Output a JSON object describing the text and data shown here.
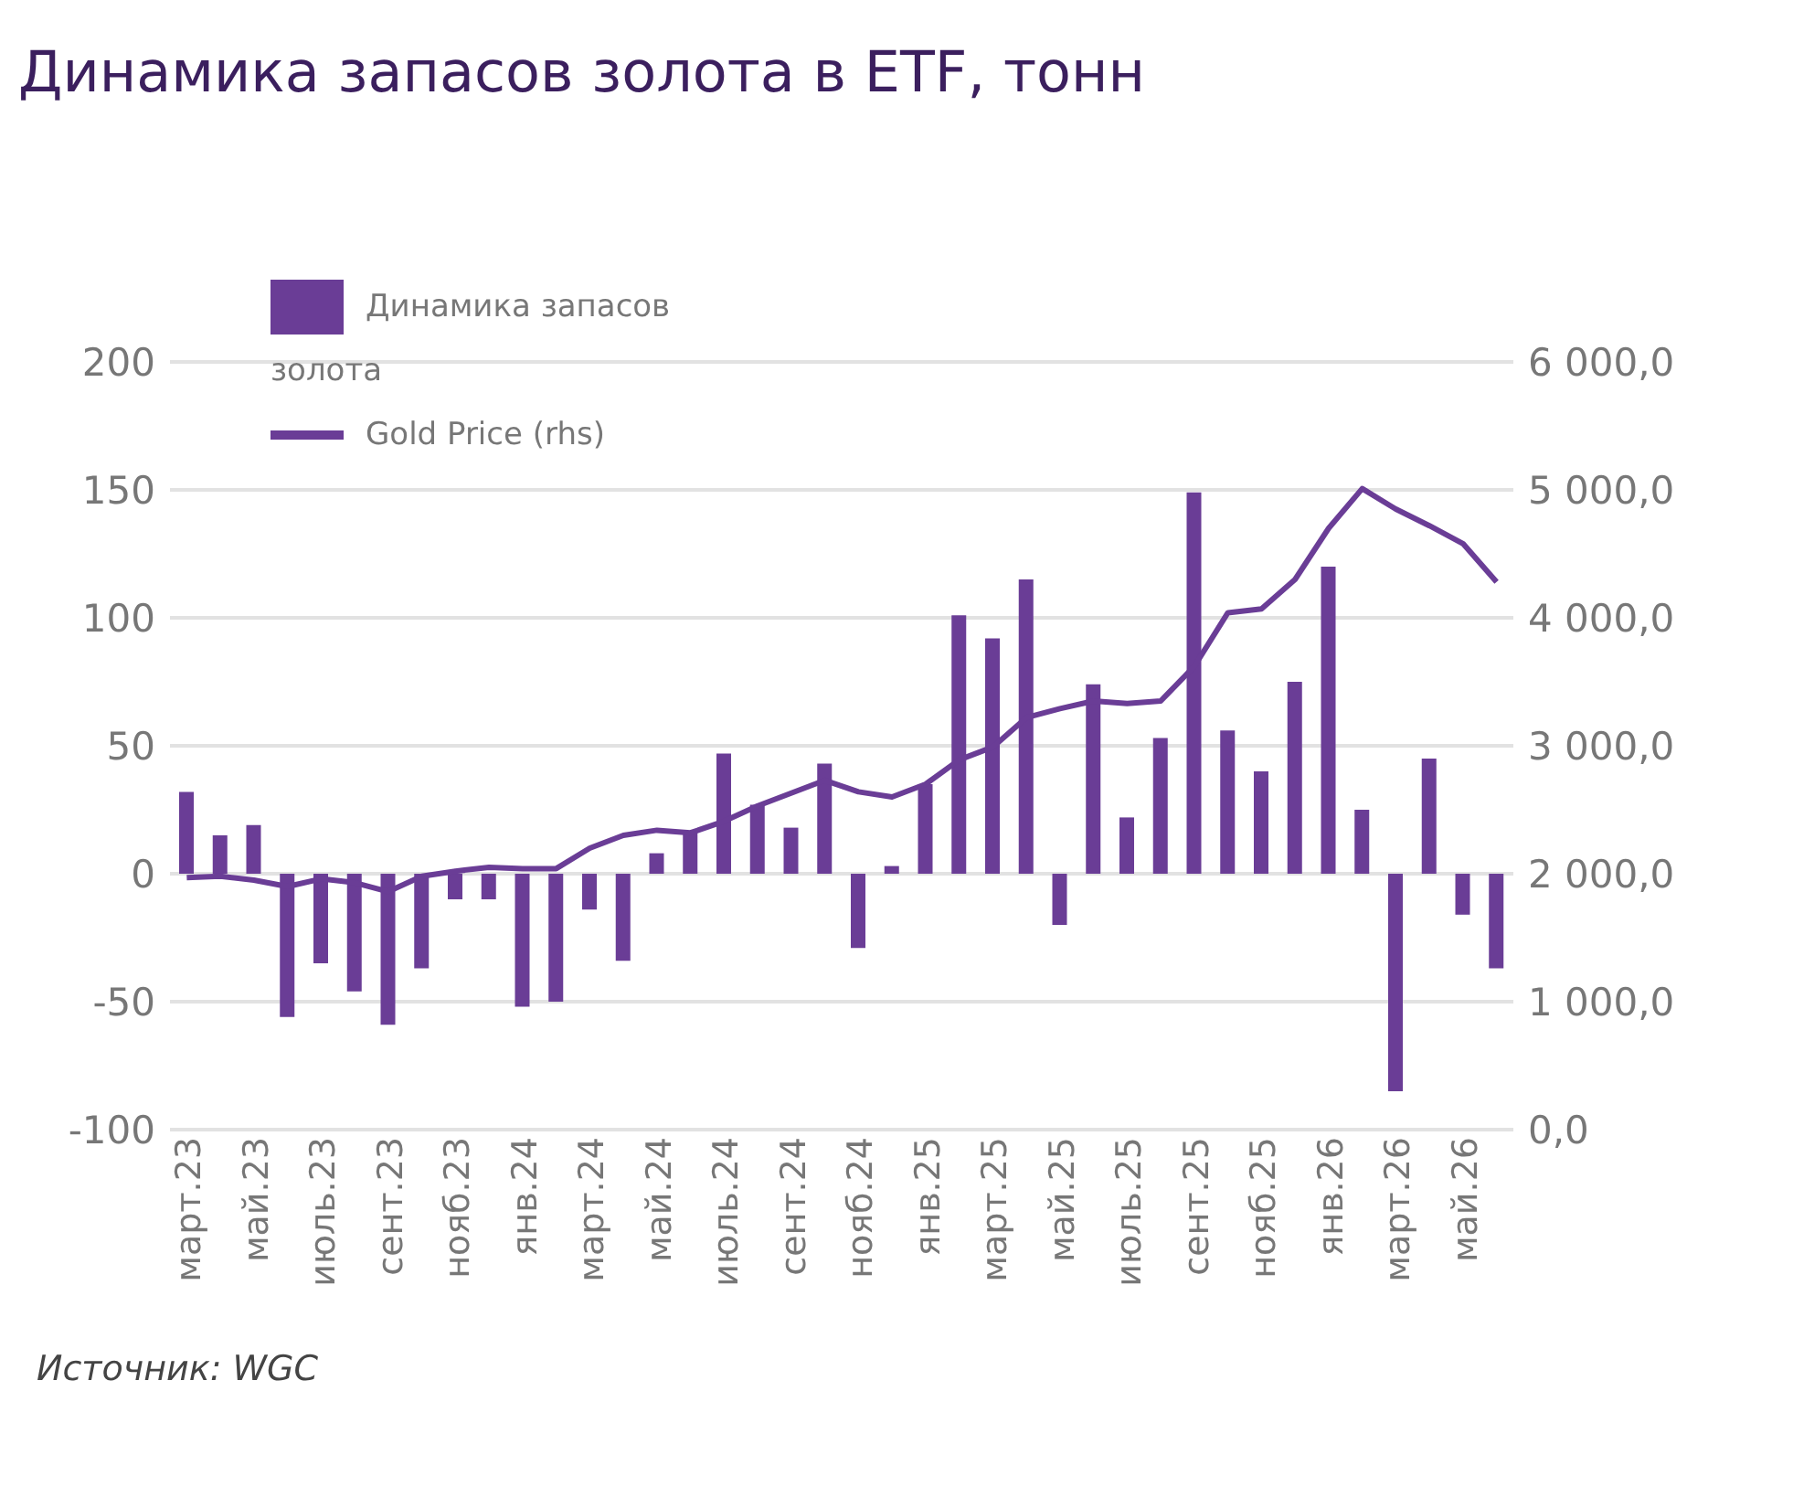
{
  "chart_data": {
    "type": "bar",
    "title": "Динамика запасов золота в ETF, тонн",
    "categories": [
      "март.23",
      null,
      "май.23",
      null,
      "июль.23",
      null,
      "сент.23",
      null,
      "нояб.23",
      null,
      "янв.24",
      null,
      "март.24",
      null,
      "май.24",
      null,
      "июль.24",
      null,
      "сент.24",
      null,
      "нояб.24",
      null,
      "янв.25",
      null,
      "март.25",
      null,
      "май.25",
      null,
      "июль.25",
      null,
      "сент.25",
      null,
      "нояб.25",
      null,
      "янв.26",
      null,
      "март.26",
      null,
      "май.26",
      null
    ],
    "series": [
      {
        "name": "Динамика запасов золота",
        "color": "#6a3d96",
        "values": [
          32,
          15,
          19,
          -56,
          -35,
          -46,
          -59,
          -37,
          -10,
          -10,
          -52,
          -50,
          -14,
          -34,
          8,
          16,
          47,
          27,
          18,
          43,
          -29,
          3,
          35,
          101,
          92,
          115,
          -20,
          74,
          22,
          53,
          149,
          56,
          40,
          75,
          120,
          25,
          -85,
          45,
          -16,
          -37
        ]
      },
      {
        "name": "Gold Price (rhs)",
        "type": "line",
        "axis": "y2",
        "color": "#6a3d96",
        "values": [
          1970,
          1980,
          1950,
          1900,
          1960,
          1930,
          1860,
          1980,
          2020,
          2050,
          2040,
          2040,
          2200,
          2300,
          2340,
          2320,
          2410,
          2530,
          2630,
          2730,
          2640,
          2600,
          2700,
          2890,
          2990,
          3220,
          3290,
          3350,
          3330,
          3350,
          3620,
          4040,
          4070,
          4300,
          4700,
          5010,
          4850,
          4720,
          4580,
          4280
        ]
      }
    ],
    "ylim": [
      -100,
      200
    ],
    "yticks": [
      -100,
      -50,
      0,
      50,
      100,
      150,
      200
    ],
    "y2lim": [
      0,
      6000
    ],
    "y2ticks": [
      {
        "value": 0,
        "label": "0,0"
      },
      {
        "value": 1000,
        "label": "1 000,0"
      },
      {
        "value": 2000,
        "label": "2 000,0"
      },
      {
        "value": 3000,
        "label": "3 000,0"
      },
      {
        "value": 4000,
        "label": "4 000,0"
      },
      {
        "value": 5000,
        "label": "5 000,0"
      },
      {
        "value": 6000,
        "label": "6 000,0"
      }
    ],
    "grid": "y",
    "legend": "top left",
    "marker": "none",
    "line_style": "solid",
    "annotations": [
      "Источник: WGC"
    ]
  }
}
